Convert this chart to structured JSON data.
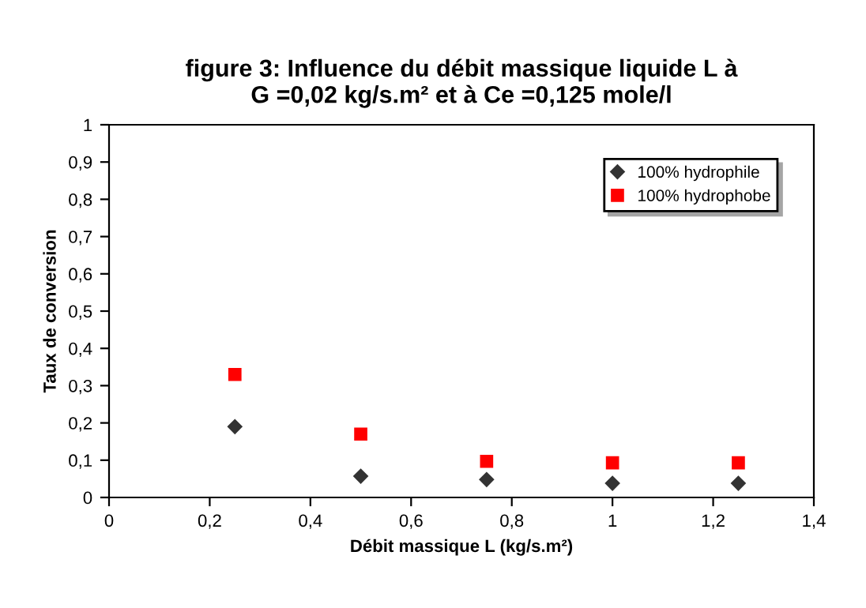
{
  "chart_data": {
    "type": "scatter",
    "title": "figure 3: Influence du débit massique liquide L à\nG =0,02 kg/s.m² et à Ce =0,125 mole/l",
    "xlabel": "Débit massique L (kg/s.m²)",
    "ylabel": "Taux de conversion",
    "x": [
      0.25,
      0.5,
      0.75,
      1.0,
      1.25
    ],
    "series": [
      {
        "name": "100% hydrophile",
        "color": "#333333",
        "marker": "diamond",
        "values": [
          0.19,
          0.057,
          0.048,
          0.038,
          0.038
        ]
      },
      {
        "name": "100% hydrophobe",
        "color": "#ff0000",
        "marker": "square",
        "values": [
          0.33,
          0.17,
          0.097,
          0.093,
          0.093
        ]
      }
    ],
    "xlim": [
      0,
      1.4
    ],
    "xticks": [
      0,
      {
        "value": 0.2,
        "label": "0,2"
      },
      {
        "value": 0.4,
        "label": "0,4"
      },
      {
        "value": 0.6,
        "label": "0,6"
      },
      {
        "value": 0.8,
        "label": "0,8"
      },
      1,
      {
        "value": 1.2,
        "label": "1,2"
      },
      {
        "value": 1.4,
        "label": "1,4"
      }
    ],
    "ylim": [
      0,
      1
    ],
    "yticks": [
      0,
      {
        "value": 0.1,
        "label": "0,1"
      },
      {
        "value": 0.2,
        "label": "0,2"
      },
      {
        "value": 0.3,
        "label": "0,3"
      },
      {
        "value": 0.4,
        "label": "0,4"
      },
      {
        "value": 0.5,
        "label": "0,5"
      },
      {
        "value": 0.6,
        "label": "0,6"
      },
      {
        "value": 0.7,
        "label": "0,7"
      },
      {
        "value": 0.8,
        "label": "0,8"
      },
      {
        "value": 0.9,
        "label": "0,9"
      },
      1
    ],
    "grid": false,
    "legend": "top right"
  }
}
